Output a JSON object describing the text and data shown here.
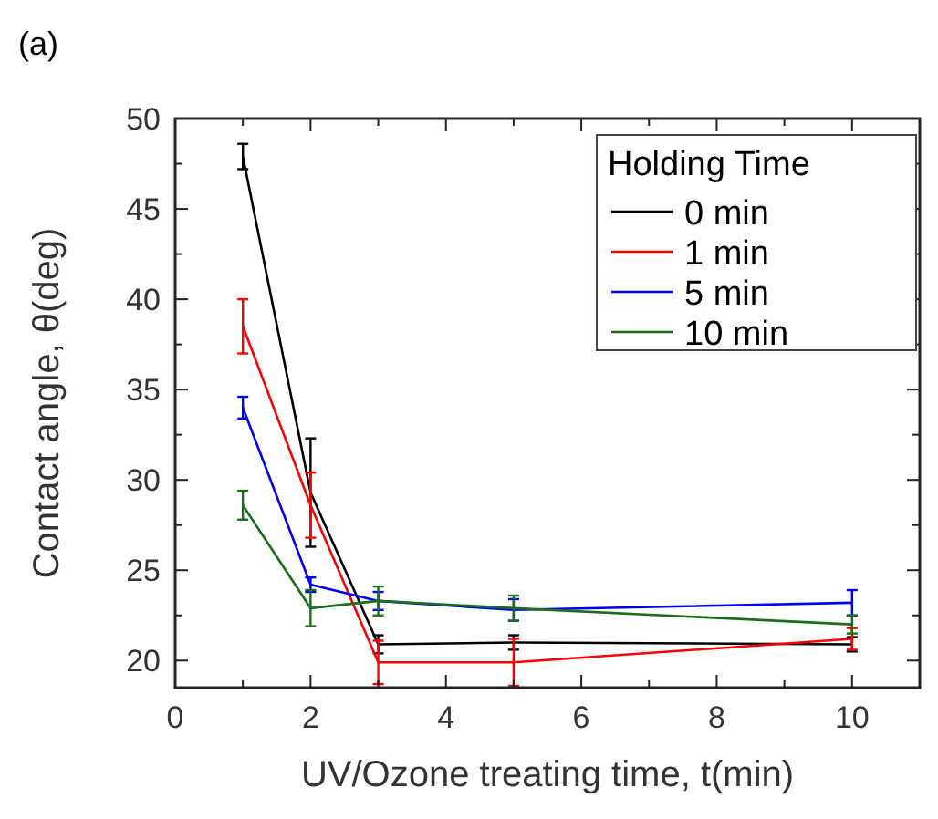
{
  "chart_data": {
    "type": "line",
    "title": "(a)",
    "xlabel": "UV/Ozone treating time, t(min)",
    "ylabel": "Contact angle, θ(deg)",
    "legend_title": "Holding Time",
    "legend": "top right",
    "x": [
      1,
      2,
      3,
      5,
      10
    ],
    "series": [
      {
        "name": "0 min",
        "color": "#000000",
        "values": [
          47.9,
          29.3,
          20.9,
          21.0,
          20.9
        ],
        "errors": [
          0.7,
          3.0,
          0.5,
          0.4,
          0.4
        ]
      },
      {
        "name": "1 min",
        "color": "#ff0000",
        "values": [
          38.5,
          28.6,
          19.9,
          19.9,
          21.2
        ],
        "errors": [
          1.5,
          1.8,
          1.2,
          1.3,
          0.6
        ]
      },
      {
        "name": "5 min",
        "color": "#0000ff",
        "values": [
          34.0,
          24.2,
          23.3,
          22.8,
          23.2
        ],
        "errors": [
          0.6,
          0.4,
          0.5,
          0.6,
          0.7
        ]
      },
      {
        "name": "10 min",
        "color": "#1a6e1a",
        "values": [
          28.6,
          22.9,
          23.3,
          22.9,
          22.0
        ],
        "errors": [
          0.8,
          1.0,
          0.8,
          0.7,
          0.5
        ]
      }
    ],
    "xlim": [
      0,
      11
    ],
    "ylim": [
      18.5,
      50
    ],
    "xticks": [
      0,
      2,
      4,
      6,
      8,
      10
    ],
    "yticks": [
      20,
      25,
      30,
      35,
      40,
      45,
      50
    ],
    "grid": false,
    "marker": "none",
    "line_style": "solid"
  }
}
